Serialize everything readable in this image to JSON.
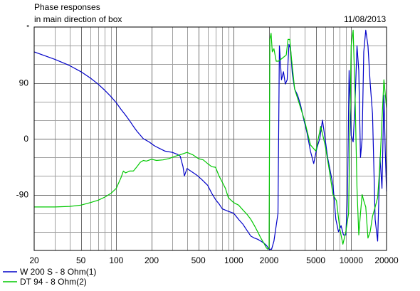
{
  "header": {
    "title_line1": "Phase responses",
    "title_line2": "in main direction of box",
    "date": "11/08/2013",
    "unit_symbol": "°"
  },
  "chart_data": {
    "type": "line",
    "title": "Phase responses in main direction of box",
    "xlabel": "",
    "ylabel": "°",
    "x_scale": "log",
    "xlim": [
      20,
      20000
    ],
    "ylim": [
      -180,
      180
    ],
    "grid": true,
    "legend_position": "bottom-left",
    "x_ticks": [
      20,
      50,
      100,
      200,
      500,
      1000,
      2000,
      5000,
      10000,
      20000
    ],
    "x_tick_labels": [
      "20",
      "50",
      "100",
      "200",
      "500",
      "1000",
      "2000",
      "5000",
      "10000",
      "20000"
    ],
    "y_ticks": [
      90,
      0,
      -90
    ],
    "y_tick_labels": [
      "90",
      "0",
      "-90"
    ],
    "colors": {
      "grid": "#a0a0a0",
      "axis": "#000000"
    },
    "series": [
      {
        "name": "W 200 S - 8 Ohm(1)",
        "color": "#0000c8",
        "x": [
          20,
          30,
          40,
          50,
          60,
          70,
          80,
          90,
          100,
          110,
          120,
          130,
          140,
          150,
          170,
          190,
          210,
          230,
          260,
          300,
          330,
          350,
          370,
          380,
          400,
          430,
          480,
          530,
          600,
          650,
          700,
          750,
          800,
          900,
          1000,
          1100,
          1200,
          1300,
          1400,
          1500,
          1600,
          1700,
          1800,
          1900,
          2000,
          2100,
          2200,
          2300,
          2380,
          2450,
          2550,
          2650,
          2750,
          2850,
          2950,
          3050,
          3150,
          3300,
          3500,
          3700,
          3900,
          4200,
          4500,
          4800,
          5100,
          5400,
          5700,
          6000,
          6300,
          6600,
          7000,
          7400,
          7800,
          8200,
          8600,
          9000,
          9300,
          9600,
          10000,
          10400,
          10800,
          11200,
          11600,
          12000,
          12400,
          12800,
          13300,
          13900,
          14500,
          15200,
          16000,
          16800,
          17600,
          18300,
          19000,
          19500,
          20000
        ],
        "y": [
          140,
          128,
          118,
          108,
          98,
          88,
          78,
          68,
          58,
          47,
          38,
          29,
          20,
          12,
          0,
          -5,
          -11,
          -15,
          -20,
          -22,
          -25,
          -28,
          -45,
          -60,
          -48,
          -52,
          -58,
          -65,
          -75,
          -88,
          -98,
          -105,
          -113,
          -117,
          -120,
          -130,
          -138,
          -148,
          -157,
          -160,
          -162,
          -165,
          -168,
          -172,
          -178,
          -178,
          -165,
          -140,
          -120,
          150,
          95,
          108,
          88,
          95,
          152,
          145,
          105,
          80,
          70,
          55,
          35,
          10,
          -20,
          -40,
          -15,
          0,
          30,
          0,
          -30,
          -50,
          -75,
          -130,
          -150,
          -140,
          -155,
          -155,
          -95,
          110,
          5,
          -5,
          60,
          150,
          110,
          -30,
          0,
          140,
          175,
          150,
          90,
          40,
          -130,
          -165,
          -30,
          -80,
          70,
          -20,
          -85
        ]
      },
      {
        "name": "DT 94 - 8 Ohm(2)",
        "color": "#00c800",
        "x": [
          20,
          30,
          40,
          50,
          60,
          70,
          80,
          90,
          100,
          110,
          115,
          120,
          130,
          140,
          150,
          160,
          170,
          180,
          200,
          220,
          250,
          280,
          320,
          360,
          400,
          450,
          500,
          550,
          600,
          650,
          700,
          750,
          800,
          850,
          900,
          1000,
          1100,
          1200,
          1300,
          1400,
          1500,
          1600,
          1700,
          1800,
          1900,
          1950,
          2000,
          2030,
          2080,
          2130,
          2200,
          2300,
          2400,
          2600,
          2800,
          2900,
          3000,
          3100,
          3300,
          3500,
          4000,
          4500,
          5000,
          5500,
          6000,
          6500,
          7000,
          7500,
          8000,
          8500,
          9000,
          9500,
          10000,
          10400,
          10800,
          11200,
          11600,
          12000,
          12400,
          12800,
          13300,
          13900,
          14500,
          15200,
          16000,
          16800,
          17600,
          18300,
          19000,
          20000
        ],
        "y": [
          -110,
          -110,
          -109,
          -107,
          -103,
          -99,
          -94,
          -88,
          -80,
          -62,
          -52,
          -55,
          -52,
          -52,
          -45,
          -38,
          -35,
          -36,
          -33,
          -35,
          -34,
          -32,
          -28,
          -25,
          -22,
          -26,
          -32,
          -34,
          -40,
          -45,
          -46,
          -60,
          -70,
          -80,
          -95,
          -103,
          -107,
          -115,
          -122,
          -130,
          -140,
          -150,
          -160,
          -168,
          -176,
          -178,
          -175,
          160,
          170,
          140,
          145,
          125,
          125,
          130,
          135,
          160,
          160,
          130,
          80,
          65,
          30,
          -10,
          -20,
          20,
          -10,
          -50,
          -90,
          -100,
          -145,
          -170,
          -150,
          -120,
          150,
          175,
          70,
          -80,
          -155,
          -120,
          -90,
          -100,
          -110,
          -160,
          -150,
          -125,
          -110,
          -95,
          -40,
          30,
          95,
          50
        ]
      }
    ]
  }
}
